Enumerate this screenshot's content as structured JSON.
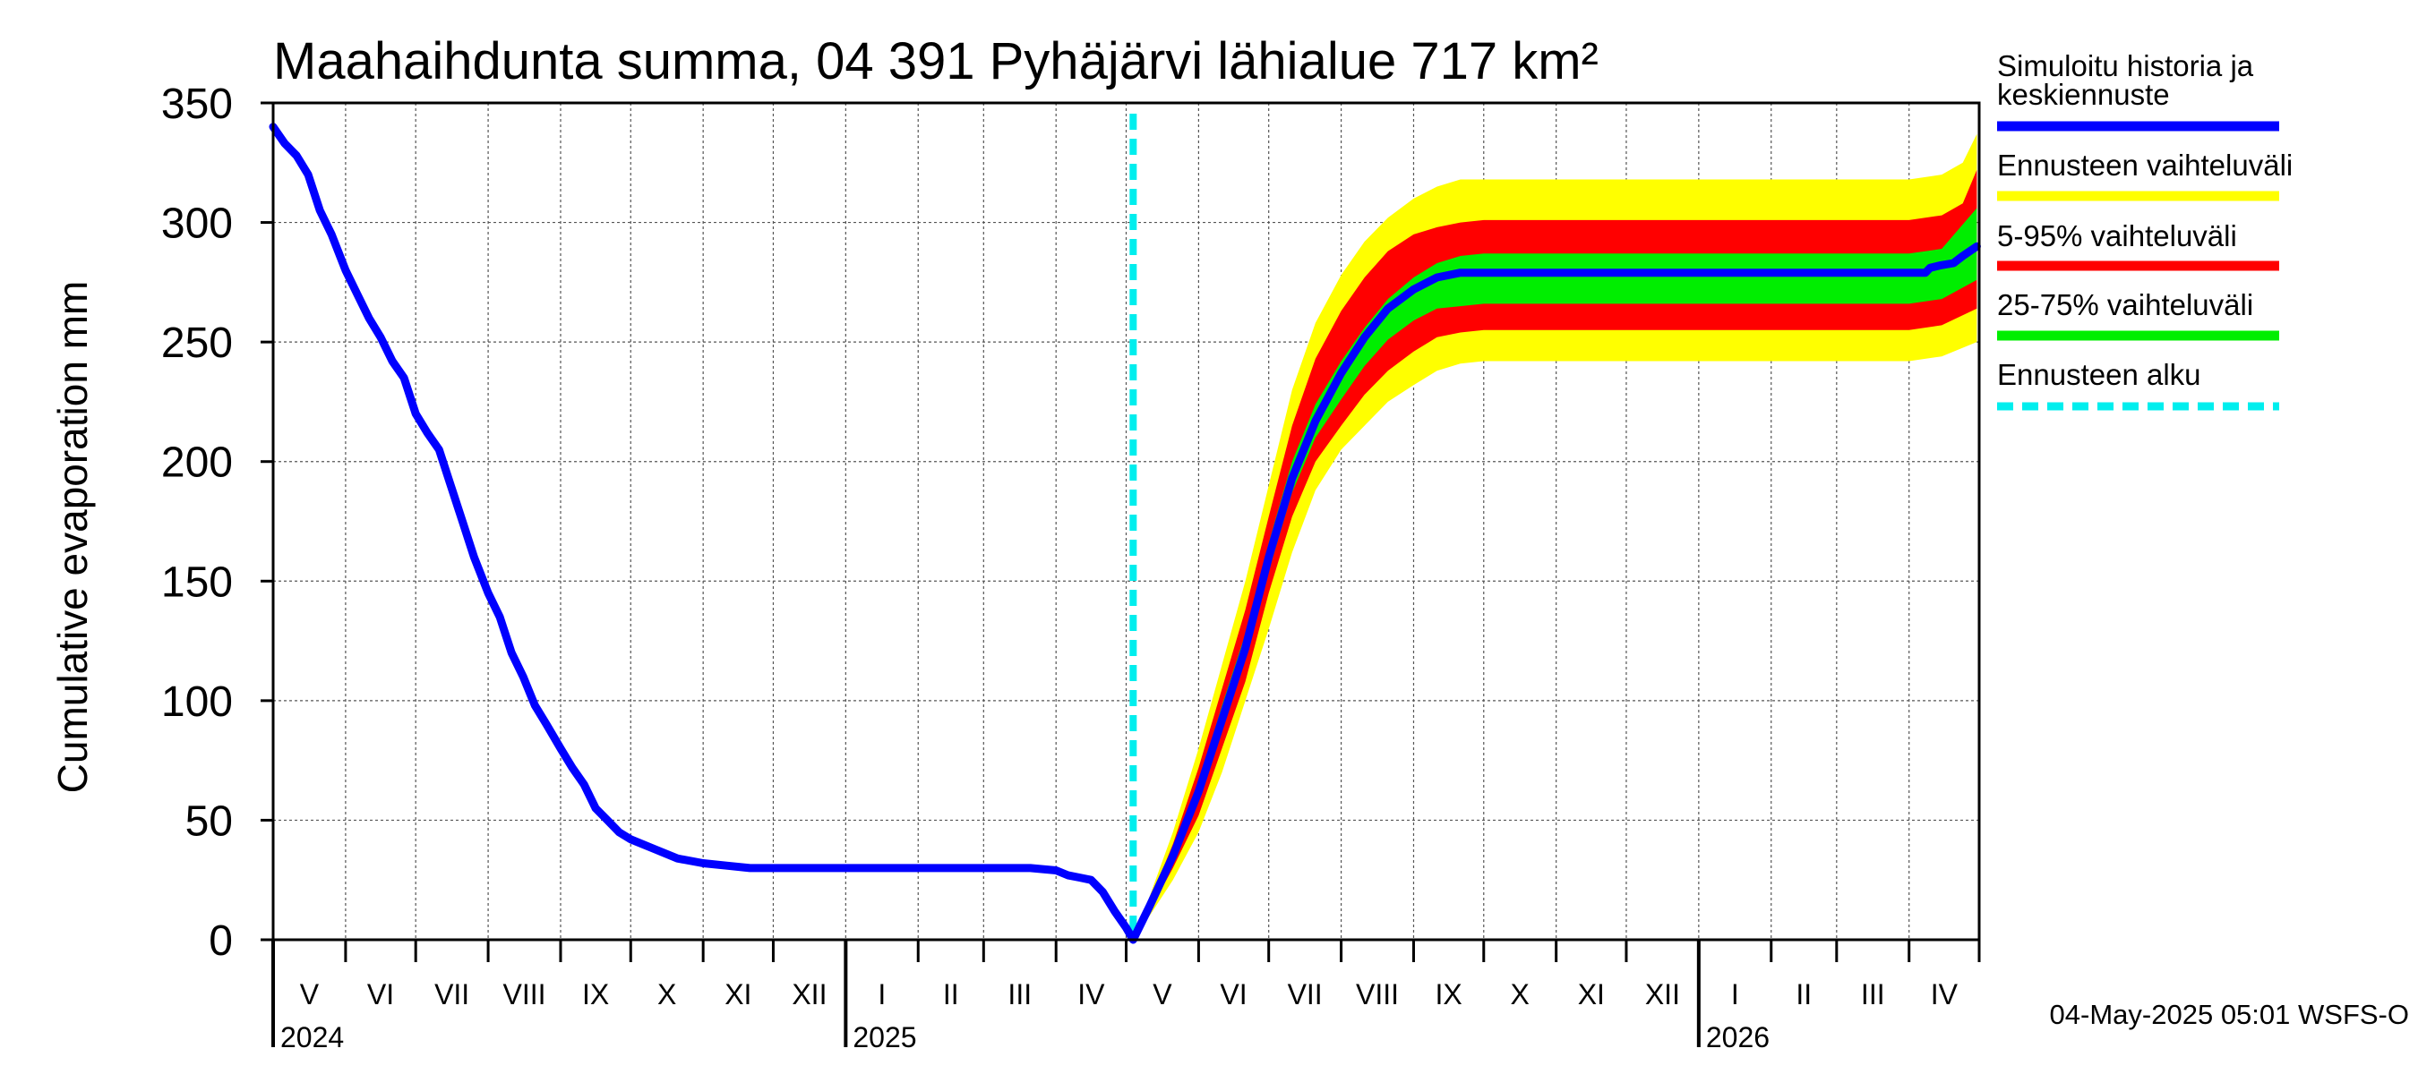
{
  "chart_data": {
    "type": "line",
    "title": "Maahaihdunta summa, 04 391 Pyhäjärvi lähialue 717 km²",
    "ylabel": "Cumulative evaporation   mm",
    "ylim": [
      0,
      350
    ],
    "yticks": [
      "0",
      "50",
      "100",
      "150",
      "200",
      "250",
      "300",
      "350"
    ],
    "grid": true,
    "legend_position": "right",
    "legend": {
      "history_line1": "Simuloitu historia ja",
      "history_line2": "keskiennuste",
      "range_all": "Ennusteen vaihteluväli",
      "range_5_95": "5-95% vaihteluväli",
      "range_25_75": "25-75% vaihteluväli",
      "forecast_start": "Ennusteen alku"
    },
    "colors": {
      "history": "#0000ff",
      "range_all": "#ffff00",
      "range_5_95": "#ff0000",
      "range_25_75": "#00ee00",
      "forecast_start": "#00eeee",
      "grid": "#555555"
    },
    "months": [
      {
        "label": "V",
        "days": 31
      },
      {
        "label": "VI",
        "days": 30
      },
      {
        "label": "VII",
        "days": 31
      },
      {
        "label": "VIII",
        "days": 31
      },
      {
        "label": "IX",
        "days": 30
      },
      {
        "label": "X",
        "days": 31
      },
      {
        "label": "XI",
        "days": 30
      },
      {
        "label": "XII",
        "days": 31
      },
      {
        "label": "I",
        "days": 31
      },
      {
        "label": "II",
        "days": 28
      },
      {
        "label": "III",
        "days": 31
      },
      {
        "label": "IV",
        "days": 30
      },
      {
        "label": "V",
        "days": 31
      },
      {
        "label": "VI",
        "days": 30
      },
      {
        "label": "VII",
        "days": 31
      },
      {
        "label": "VIII",
        "days": 31
      },
      {
        "label": "IX",
        "days": 30
      },
      {
        "label": "X",
        "days": 31
      },
      {
        "label": "XI",
        "days": 30
      },
      {
        "label": "XII",
        "days": 31
      },
      {
        "label": "I",
        "days": 31
      },
      {
        "label": "II",
        "days": 28
      },
      {
        "label": "III",
        "days": 31
      },
      {
        "label": "IV",
        "days": 30
      }
    ],
    "years": [
      {
        "label": "2024",
        "month_index": 0
      },
      {
        "label": "2025",
        "month_index": 8
      },
      {
        "label": "2026",
        "month_index": 20
      }
    ],
    "forecast_start_date": "2025-05-04",
    "series": [
      {
        "name": "Simuloitu historia ja keskiennuste",
        "x": [
          "2024-05-01",
          "2024-05-06",
          "2024-05-11",
          "2024-05-16",
          "2024-05-21",
          "2024-05-26",
          "2024-06-01",
          "2024-06-06",
          "2024-06-11",
          "2024-06-16",
          "2024-06-21",
          "2024-06-26",
          "2024-07-01",
          "2024-07-06",
          "2024-07-11",
          "2024-07-16",
          "2024-07-21",
          "2024-07-26",
          "2024-08-01",
          "2024-08-06",
          "2024-08-11",
          "2024-08-16",
          "2024-08-21",
          "2024-08-26",
          "2024-09-01",
          "2024-09-06",
          "2024-09-11",
          "2024-09-16",
          "2024-09-21",
          "2024-09-26",
          "2024-10-01",
          "2024-10-11",
          "2024-10-21",
          "2024-11-01",
          "2024-11-11",
          "2024-11-21",
          "2024-12-01",
          "2025-01-01",
          "2025-02-01",
          "2025-03-01",
          "2025-03-21",
          "2025-04-01",
          "2025-04-06",
          "2025-04-11",
          "2025-04-16",
          "2025-04-21",
          "2025-04-26",
          "2025-05-01",
          "2025-05-04",
          "2025-05-11",
          "2025-05-21",
          "2025-06-01",
          "2025-06-11",
          "2025-06-21",
          "2025-07-01",
          "2025-07-11",
          "2025-07-21",
          "2025-08-01",
          "2025-08-11",
          "2025-08-21",
          "2025-09-01",
          "2025-09-11",
          "2025-09-21",
          "2025-10-01",
          "2025-10-11",
          "2025-10-21",
          "2025-11-01",
          "2025-11-15",
          "2025-12-01",
          "2026-01-01",
          "2026-02-01",
          "2026-03-01",
          "2026-04-01",
          "2026-04-08",
          "2026-04-10",
          "2026-04-14",
          "2026-04-20",
          "2026-04-24",
          "2026-04-30"
        ],
        "values": [
          340,
          333,
          328,
          320,
          305,
          295,
          280,
          270,
          260,
          252,
          242,
          235,
          220,
          212,
          205,
          190,
          175,
          160,
          145,
          135,
          120,
          110,
          98,
          90,
          80,
          72,
          65,
          55,
          50,
          45,
          42,
          38,
          34,
          32,
          31,
          30,
          30,
          30,
          30,
          30,
          30,
          29,
          27,
          26,
          25,
          20,
          12,
          5,
          0,
          14,
          35,
          62,
          92,
          122,
          160,
          193,
          217,
          237,
          252,
          264,
          272,
          277,
          279,
          279,
          279,
          279,
          279,
          279,
          279,
          279,
          279,
          279,
          279,
          279,
          281,
          282,
          283,
          286,
          290
        ]
      },
      {
        "name": "Ennusteen vaihteluväli (ala)",
        "x": [
          "2025-05-04",
          "2025-05-11",
          "2025-05-21",
          "2025-06-01",
          "2025-06-11",
          "2025-06-21",
          "2025-07-01",
          "2025-07-11",
          "2025-07-21",
          "2025-08-01",
          "2025-08-11",
          "2025-08-21",
          "2025-09-01",
          "2025-09-11",
          "2025-09-21",
          "2025-10-01",
          "2025-10-11",
          "2025-10-21",
          "2025-11-01",
          "2025-12-01",
          "2026-01-01",
          "2026-02-01",
          "2026-03-01",
          "2026-04-01",
          "2026-04-15",
          "2026-04-30"
        ],
        "values": [
          0,
          10,
          25,
          45,
          70,
          100,
          130,
          162,
          188,
          205,
          215,
          225,
          232,
          238,
          241,
          242,
          242,
          242,
          242,
          242,
          242,
          242,
          242,
          242,
          244,
          250
        ]
      },
      {
        "name": "Ennusteen vaihteluväli (ylä)",
        "x": [
          "2025-05-04",
          "2025-05-11",
          "2025-05-21",
          "2025-06-01",
          "2025-06-11",
          "2025-06-21",
          "2025-07-01",
          "2025-07-11",
          "2025-07-21",
          "2025-08-01",
          "2025-08-11",
          "2025-08-21",
          "2025-09-01",
          "2025-09-11",
          "2025-09-21",
          "2025-10-01",
          "2025-10-11",
          "2025-10-21",
          "2025-11-01",
          "2025-12-01",
          "2026-01-01",
          "2026-02-01",
          "2026-03-01",
          "2026-04-01",
          "2026-04-15",
          "2026-04-24",
          "2026-04-30"
        ],
        "values": [
          0,
          18,
          45,
          80,
          115,
          150,
          190,
          230,
          258,
          278,
          292,
          302,
          310,
          315,
          318,
          318,
          318,
          318,
          318,
          318,
          318,
          318,
          318,
          318,
          320,
          325,
          337
        ]
      },
      {
        "name": "5-95% vaihteluväli (ala)",
        "x": [
          "2025-05-04",
          "2025-05-11",
          "2025-05-21",
          "2025-06-01",
          "2025-06-11",
          "2025-06-21",
          "2025-07-01",
          "2025-07-11",
          "2025-07-21",
          "2025-08-01",
          "2025-08-11",
          "2025-08-21",
          "2025-09-01",
          "2025-09-11",
          "2025-09-21",
          "2025-10-01",
          "2025-10-11",
          "2025-10-21",
          "2025-11-01",
          "2025-12-01",
          "2026-01-01",
          "2026-02-01",
          "2026-03-01",
          "2026-04-01",
          "2026-04-15",
          "2026-04-30"
        ],
        "values": [
          0,
          12,
          30,
          52,
          80,
          108,
          145,
          177,
          200,
          215,
          228,
          238,
          246,
          252,
          254,
          255,
          255,
          255,
          255,
          255,
          255,
          255,
          255,
          255,
          257,
          264
        ]
      },
      {
        "name": "5-95% vaihteluväli (ylä)",
        "x": [
          "2025-05-04",
          "2025-05-11",
          "2025-05-21",
          "2025-06-01",
          "2025-06-11",
          "2025-06-21",
          "2025-07-01",
          "2025-07-11",
          "2025-07-21",
          "2025-08-01",
          "2025-08-11",
          "2025-08-21",
          "2025-09-01",
          "2025-09-11",
          "2025-09-21",
          "2025-10-01",
          "2025-10-11",
          "2025-10-21",
          "2025-11-01",
          "2025-12-01",
          "2026-01-01",
          "2026-02-01",
          "2026-03-01",
          "2026-04-01",
          "2026-04-15",
          "2026-04-24",
          "2026-04-30"
        ],
        "values": [
          0,
          16,
          40,
          72,
          105,
          138,
          177,
          215,
          243,
          263,
          277,
          288,
          295,
          298,
          300,
          301,
          301,
          301,
          301,
          301,
          301,
          301,
          301,
          301,
          303,
          308,
          322
        ]
      },
      {
        "name": "25-75% vaihteluväli (ala)",
        "x": [
          "2025-05-04",
          "2025-05-11",
          "2025-05-21",
          "2025-06-01",
          "2025-06-11",
          "2025-06-21",
          "2025-07-01",
          "2025-07-11",
          "2025-07-21",
          "2025-08-01",
          "2025-08-11",
          "2025-08-21",
          "2025-09-01",
          "2025-09-11",
          "2025-09-21",
          "2025-10-01",
          "2025-10-11",
          "2025-10-21",
          "2025-11-01",
          "2025-12-01",
          "2026-01-01",
          "2026-02-01",
          "2026-03-01",
          "2026-04-01",
          "2026-04-15",
          "2026-04-30"
        ],
        "values": [
          0,
          13,
          33,
          58,
          88,
          117,
          154,
          187,
          210,
          226,
          240,
          251,
          259,
          264,
          265,
          266,
          266,
          266,
          266,
          266,
          266,
          266,
          266,
          266,
          268,
          276
        ]
      },
      {
        "name": "25-75% vaihteluväli (ylä)",
        "x": [
          "2025-05-04",
          "2025-05-11",
          "2025-05-21",
          "2025-06-01",
          "2025-06-11",
          "2025-06-21",
          "2025-07-01",
          "2025-07-11",
          "2025-07-21",
          "2025-08-01",
          "2025-08-11",
          "2025-08-21",
          "2025-09-01",
          "2025-09-11",
          "2025-09-21",
          "2025-10-01",
          "2025-10-11",
          "2025-10-21",
          "2025-11-01",
          "2025-12-01",
          "2026-01-01",
          "2026-02-01",
          "2026-03-01",
          "2026-04-01",
          "2026-04-15",
          "2026-04-30"
        ],
        "values": [
          0,
          15,
          38,
          66,
          98,
          128,
          166,
          200,
          224,
          242,
          256,
          268,
          277,
          283,
          286,
          287,
          287,
          287,
          287,
          287,
          287,
          287,
          287,
          287,
          289,
          306
        ]
      }
    ]
  },
  "footer": "04-May-2025 05:01 WSFS-O"
}
